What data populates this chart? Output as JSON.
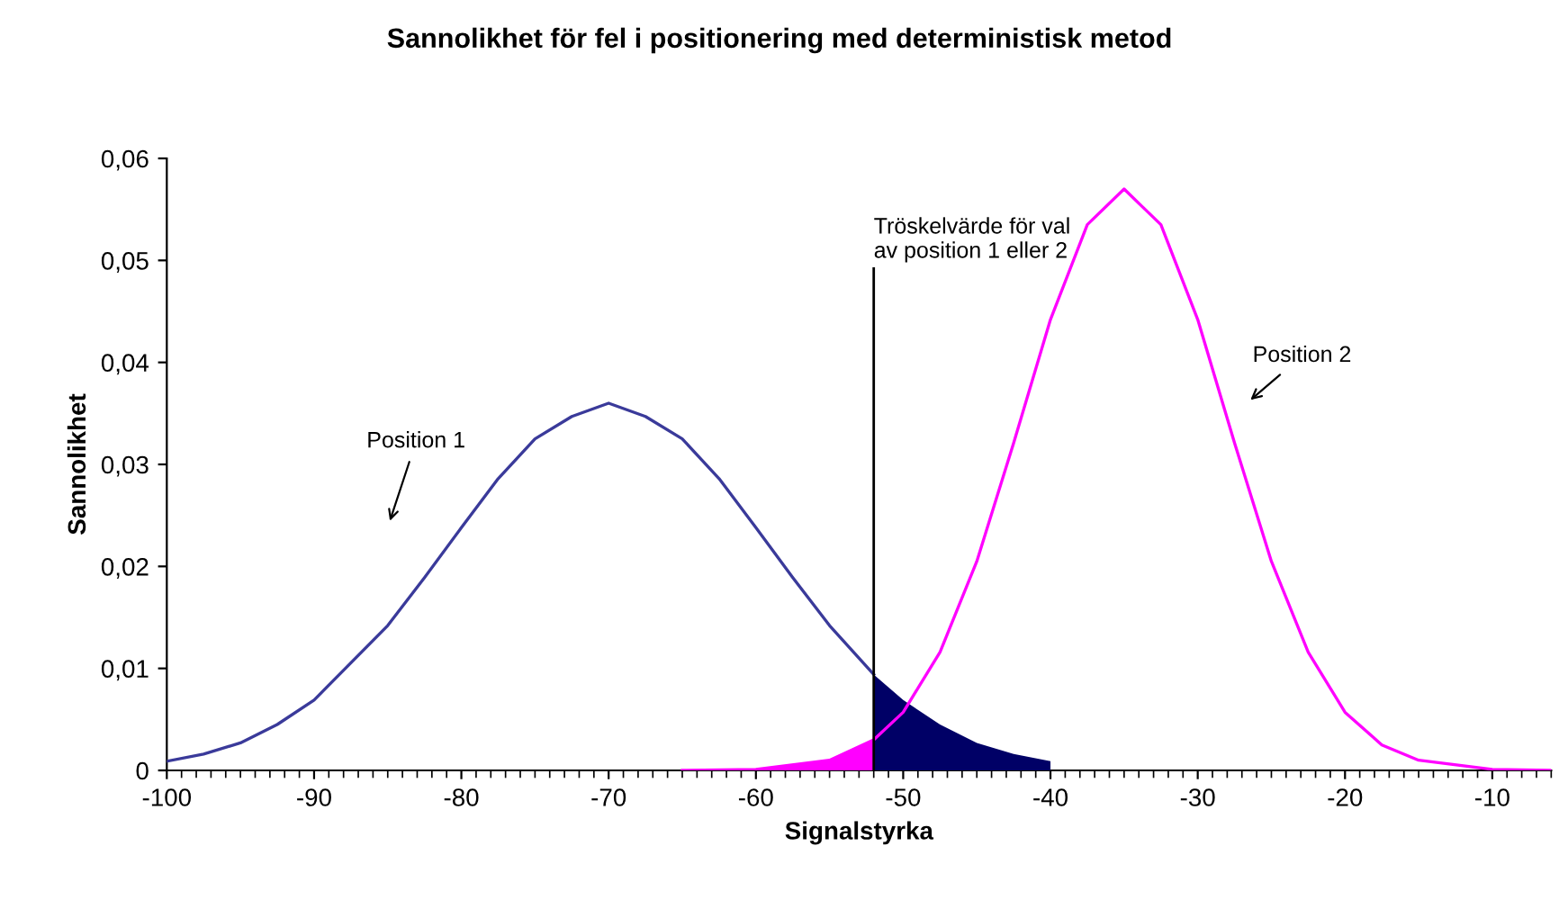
{
  "chart_data": {
    "type": "line",
    "title": "Sannolikhet för fel i positionering med deterministisk metod",
    "xlabel": "Signalstyrka",
    "ylabel": "Sannolikhet",
    "xlim": [
      -100,
      -6
    ],
    "xticks": [
      -100,
      -90,
      -80,
      -70,
      -60,
      -50,
      -40,
      -30,
      -20,
      -10
    ],
    "ylim": [
      0,
      0.06
    ],
    "yticks": [
      {
        "value": 0,
        "label": "0"
      },
      {
        "value": 0.01,
        "label": "0,01"
      },
      {
        "value": 0.02,
        "label": "0,02"
      },
      {
        "value": 0.03,
        "label": "0,03"
      },
      {
        "value": 0.04,
        "label": "0,04"
      },
      {
        "value": 0.05,
        "label": "0,05"
      },
      {
        "value": 0.06,
        "label": "0,06"
      }
    ],
    "grid": false,
    "legend": false,
    "marker": "none",
    "line_style": "solid",
    "ref_lines": [
      {
        "axis": "x",
        "value": -52,
        "label": "Tröskelvärde för val\nav position 1 eller 2",
        "color": "#000000"
      }
    ],
    "series": [
      {
        "name": "Position 1",
        "color": "#3a3a9a",
        "x": [
          -100,
          -97.5,
          -95,
          -92.5,
          -90,
          -85,
          -82.5,
          -80,
          -77.5,
          -75,
          -72.5,
          -70,
          -67.5,
          -65,
          -62.5,
          -60,
          -57.5,
          -55,
          -52
        ],
        "values": [
          0.0009,
          0.0016,
          0.0027,
          0.0045,
          0.0069,
          0.0142,
          0.0189,
          0.0238,
          0.0286,
          0.0325,
          0.0347,
          0.036,
          0.0347,
          0.0325,
          0.0286,
          0.0238,
          0.0189,
          0.0142,
          0.0094
        ]
      },
      {
        "type": "area",
        "color": "#000066",
        "x": [
          -52,
          -50,
          -47.5,
          -45,
          -42.5,
          -40
        ],
        "values": [
          0.0094,
          0.0069,
          0.0045,
          0.0027,
          0.0016,
          0.0009
        ]
      },
      {
        "type": "area",
        "color": "#ff00ff",
        "x": [
          -65,
          -60,
          -55,
          -52
        ],
        "values": [
          0.0,
          0.0001,
          0.001,
          0.003
        ]
      },
      {
        "name": "Position 2",
        "color": "#ff00ff",
        "x": [
          -65,
          -60,
          -55,
          -52,
          -50,
          -47.5,
          -45,
          -42.5,
          -40,
          -37.5,
          -35,
          -32.5,
          -30,
          -27.5,
          -25,
          -22.5,
          -20,
          -17.5,
          -15,
          -10,
          -6
        ],
        "values": [
          0.0,
          0.0001,
          0.001,
          0.003,
          0.0057,
          0.0116,
          0.0205,
          0.0321,
          0.0442,
          0.0535,
          0.057,
          0.0535,
          0.0442,
          0.0321,
          0.0205,
          0.0116,
          0.0057,
          0.0025,
          0.001,
          0.0001,
          0.0
        ]
      }
    ]
  }
}
